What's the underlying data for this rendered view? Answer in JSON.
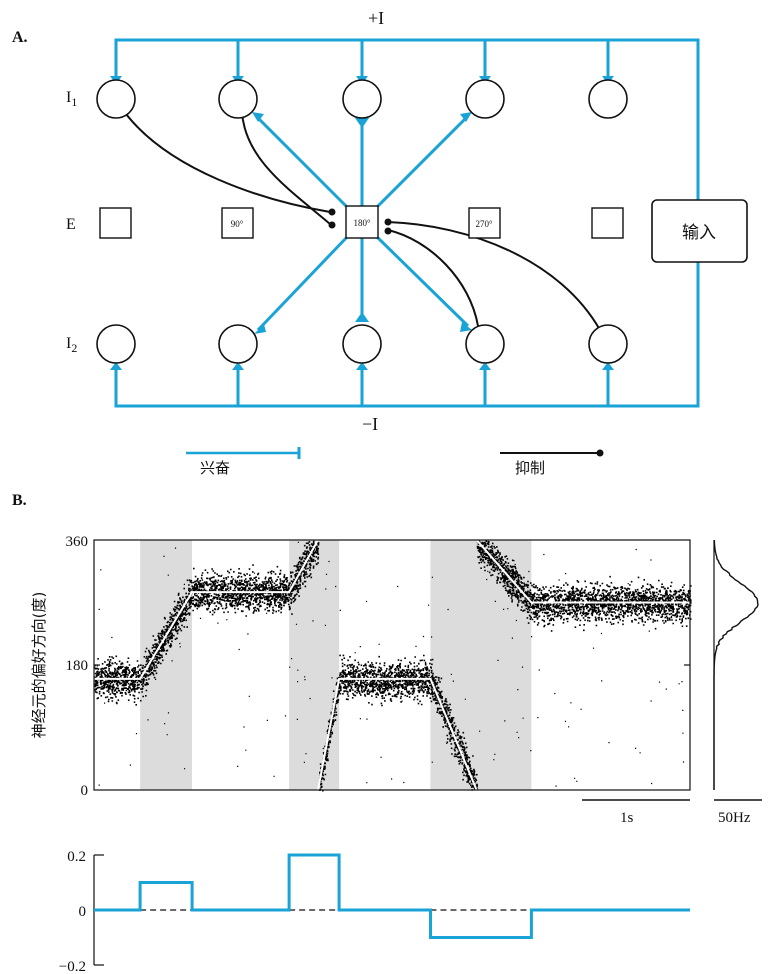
{
  "panel_a": {
    "label": "A.",
    "top_current": "+I",
    "bottom_current": "−I",
    "row_labels": {
      "i1": "I1",
      "e": "E",
      "i2": "I2"
    },
    "e_units": [
      "",
      "90°",
      "180°",
      "270°",
      ""
    ],
    "input_label": "输入",
    "legend": {
      "excite": "兴奋",
      "inhibit": "抑制"
    },
    "colors": {
      "excitatory": "#1aa3d6",
      "inhibitory": "#111111"
    }
  },
  "panel_b": {
    "label": "B.",
    "ylabel": "神经元的偏好方向(度)",
    "yticks": [
      "360",
      "180",
      "0"
    ],
    "time_scale": "1s",
    "rate_scale": "50Hz",
    "lower_ticks": [
      "0.2",
      "0",
      "−0.2"
    ]
  },
  "chart_data": [
    {
      "type": "scatter",
      "title": "",
      "xlabel": "",
      "ylabel": "神经元的偏好方向(度)",
      "ylim": [
        0,
        360
      ],
      "xlim": [
        0,
        6.2
      ],
      "grid": false,
      "shaded_intervals": [
        [
          0.48,
          1.02
        ],
        [
          2.03,
          2.55
        ],
        [
          3.5,
          4.55
        ]
      ],
      "bump_centre": {
        "x": [
          0,
          0.48,
          1.02,
          2.03,
          2.33,
          2.33,
          2.55,
          3.5,
          3.98,
          3.98,
          4.55,
          6.2
        ],
        "y": [
          160,
          160,
          285,
          285,
          360,
          0,
          160,
          160,
          0,
          360,
          270,
          270
        ]
      },
      "activity_profile": {
        "type": "line",
        "peak_direction_deg": 270,
        "rate_scale_hz": 50
      }
    },
    {
      "type": "line",
      "title": "",
      "ylim": [
        -0.2,
        0.2
      ],
      "yticks": [
        0.2,
        0,
        -0.2
      ],
      "series": [
        {
          "x": [
            0,
            0.48,
            0.48,
            1.02,
            1.02,
            2.03,
            2.03,
            2.55,
            2.55,
            3.5,
            3.5,
            4.55,
            4.55,
            6.2
          ],
          "y": [
            0,
            0,
            0.1,
            0.1,
            0,
            0,
            0.2,
            0.2,
            0,
            0,
            -0.1,
            -0.1,
            0,
            0
          ]
        }
      ],
      "baseline_dashed": [
        [
          0.48,
          1.02
        ],
        [
          2.03,
          2.55
        ],
        [
          3.5,
          4.55
        ]
      ]
    }
  ]
}
